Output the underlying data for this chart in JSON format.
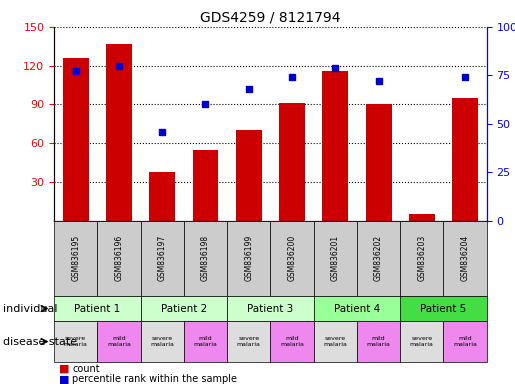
{
  "title": "GDS4259 / 8121794",
  "samples": [
    "GSM836195",
    "GSM836196",
    "GSM836197",
    "GSM836198",
    "GSM836199",
    "GSM836200",
    "GSM836201",
    "GSM836202",
    "GSM836203",
    "GSM836204"
  ],
  "counts": [
    126,
    137,
    38,
    55,
    70,
    91,
    116,
    90,
    5,
    95
  ],
  "percentile_ranks": [
    77,
    80,
    46,
    60,
    68,
    74,
    79,
    72,
    null,
    74
  ],
  "ylim_left": [
    0,
    150
  ],
  "ylim_right": [
    0,
    100
  ],
  "yticks_left": [
    30,
    60,
    90,
    120,
    150
  ],
  "yticks_right": [
    0,
    25,
    50,
    75,
    100
  ],
  "bar_color": "#cc0000",
  "dot_color": "#0000cc",
  "patients": [
    {
      "label": "Patient 1",
      "cols": [
        0,
        1
      ],
      "color": "#ccffcc"
    },
    {
      "label": "Patient 2",
      "cols": [
        2,
        3
      ],
      "color": "#ccffcc"
    },
    {
      "label": "Patient 3",
      "cols": [
        4,
        5
      ],
      "color": "#ccffcc"
    },
    {
      "label": "Patient 4",
      "cols": [
        6,
        7
      ],
      "color": "#99ff99"
    },
    {
      "label": "Patient 5",
      "cols": [
        8,
        9
      ],
      "color": "#44dd44"
    }
  ],
  "disease_states": [
    {
      "label": "severe\nmalaria",
      "col": 0,
      "color": "#dddddd"
    },
    {
      "label": "mild\nmalaria",
      "col": 1,
      "color": "#ee88ee"
    },
    {
      "label": "severe\nmalaria",
      "col": 2,
      "color": "#dddddd"
    },
    {
      "label": "mild\nmalaria",
      "col": 3,
      "color": "#ee88ee"
    },
    {
      "label": "severe\nmalaria",
      "col": 4,
      "color": "#dddddd"
    },
    {
      "label": "mild\nmalaria",
      "col": 5,
      "color": "#ee88ee"
    },
    {
      "label": "severe\nmalaria",
      "col": 6,
      "color": "#dddddd"
    },
    {
      "label": "mild\nmalaria",
      "col": 7,
      "color": "#ee88ee"
    },
    {
      "label": "severe\nmalaria",
      "col": 8,
      "color": "#dddddd"
    },
    {
      "label": "mild\nmalaria",
      "col": 9,
      "color": "#ee88ee"
    }
  ],
  "gsm_bg_color": "#cccccc",
  "individual_label": "individual",
  "disease_state_label": "disease state",
  "legend_count_label": "count",
  "legend_percentile_label": "percentile rank within the sample"
}
